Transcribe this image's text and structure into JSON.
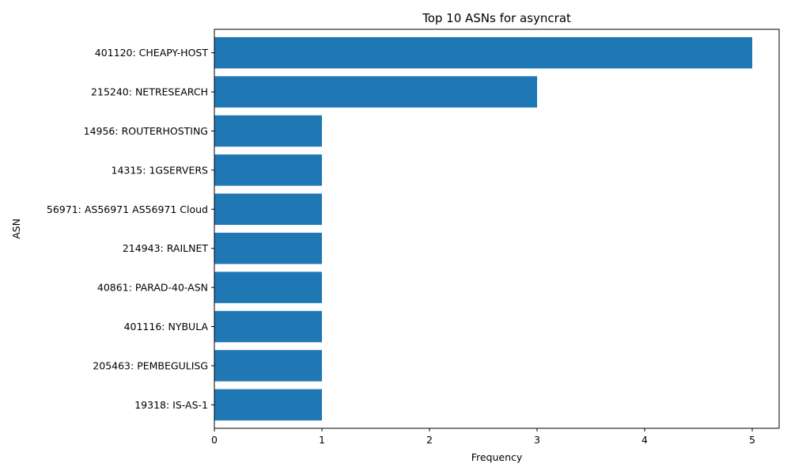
{
  "chart_data": {
    "type": "bar",
    "orientation": "horizontal",
    "title": "Top 10 ASNs for asyncrat",
    "xlabel": "Frequency",
    "ylabel": "ASN",
    "categories": [
      "401120: CHEAPY-HOST",
      "215240: NETRESEARCH",
      "14956: ROUTERHOSTING",
      "14315: 1GSERVERS",
      "56971: AS56971 AS56971 Cloud",
      "214943: RAILNET",
      "40861: PARAD-40-ASN",
      "401116: NYBULA",
      "205463: PEMBEGULISG",
      "19318: IS-AS-1"
    ],
    "values": [
      5,
      3,
      1,
      1,
      1,
      1,
      1,
      1,
      1,
      1
    ],
    "xlim": [
      0,
      5.25
    ],
    "xticks": [
      "0",
      "1",
      "2",
      "3",
      "4",
      "5"
    ],
    "grid": false,
    "bar_color": "#1f77b4"
  }
}
